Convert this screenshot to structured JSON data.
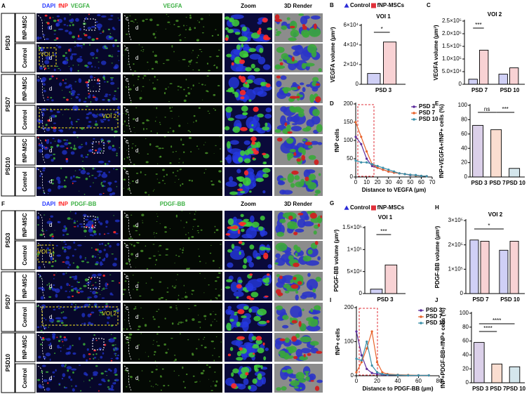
{
  "image_panels": [
    {
      "label": "A",
      "header_merge": [
        "DAPI",
        "fNP",
        "VEGFA"
      ],
      "header_colors": [
        "#2b3cff",
        "#ff2020",
        "#3cb043"
      ],
      "header_channel": "VEGFA",
      "header_zoom": "Zoom",
      "header_render": "3D Render",
      "groups": [
        "PSD3",
        "PSD7",
        "PSD10"
      ],
      "rows": [
        "fNP-MSC",
        "Control"
      ],
      "region_labels": [
        "d",
        "c",
        "VOI 1",
        "VOI 2"
      ]
    },
    {
      "label": "F",
      "header_merge": [
        "DAPI",
        "fNP",
        "PDGF-BB"
      ],
      "header_colors": [
        "#2b3cff",
        "#ff2020",
        "#3cb043"
      ],
      "header_channel": "PDGF-BB",
      "header_zoom": "Zoom",
      "header_render": "3D Render",
      "groups": [
        "PSD3",
        "PSD7",
        "PSD10"
      ],
      "rows": [
        "fNP-MSC",
        "Control"
      ],
      "region_labels": [
        "d",
        "c",
        "VOI 1",
        "VOI 2"
      ]
    }
  ],
  "chart_data": [
    {
      "label": "B",
      "type": "bar",
      "title": "VOI 1",
      "ylabel": "VEGFA volume (µm³)",
      "categories": [
        "PSD 3"
      ],
      "series": [
        {
          "name": "Control",
          "color": "#2b2bd6",
          "marker": "triangle",
          "values": [
            11000
          ]
        },
        {
          "name": "fNP-MSCs",
          "color": "#e0303a",
          "marker": "square",
          "values": [
            43000
          ]
        }
      ],
      "ylim": [
        0,
        60000
      ],
      "yticks": [
        0,
        {
          "value": 20000,
          "label": "2×10⁴"
        },
        {
          "value": 40000,
          "label": "4×10⁴"
        },
        {
          "value": 60000,
          "label": "6×10⁴"
        }
      ],
      "annotations": [
        "*"
      ]
    },
    {
      "label": "C",
      "type": "bar",
      "title": "VOI 2",
      "ylabel": "VEGFA volume (µm³)",
      "categories": [
        "PSD 7",
        "PSD 10"
      ],
      "series": [
        {
          "color": "#2b2bd6",
          "values": [
            20000,
            40000
          ]
        },
        {
          "color": "#e0303a",
          "values": [
            135000,
            65000
          ]
        }
      ],
      "ylim": [
        0,
        250000
      ],
      "yticks": [
        0,
        {
          "value": 50000,
          "label": "5.0×10⁴"
        },
        {
          "value": 100000,
          "label": "1.0×10⁵"
        },
        {
          "value": 150000,
          "label": "1.5×10⁵"
        },
        {
          "value": 200000,
          "label": "2.0×10⁵"
        },
        {
          "value": 250000,
          "label": "2.5×10⁵"
        }
      ],
      "annotations": [
        "***"
      ]
    },
    {
      "label": "D",
      "type": "line",
      "ylabel": "fNP cells",
      "xlabel": "Distance to VEGFA (µm)",
      "x": [
        0,
        5,
        10,
        15,
        20,
        25,
        30,
        35,
        40,
        45,
        50,
        55,
        60,
        65
      ],
      "series": [
        {
          "name": "PSD 3",
          "color": "#5b2a9b",
          "values": [
            110,
            90,
            50,
            30,
            25,
            20,
            15,
            12,
            10,
            8,
            5,
            5,
            3,
            2
          ]
        },
        {
          "name": "PSD 7",
          "color": "#e8632b",
          "values": [
            150,
            110,
            70,
            35,
            25,
            20,
            15,
            12,
            10,
            8,
            6,
            4,
            3,
            2
          ]
        },
        {
          "name": "PSD 10",
          "color": "#3a8fa8",
          "values": [
            45,
            40,
            40,
            35,
            30,
            25,
            20,
            15,
            10,
            8,
            6,
            5,
            3,
            2
          ]
        }
      ],
      "xlim": [
        0,
        70
      ],
      "xticks": [
        0,
        10,
        20,
        30,
        40,
        50,
        60,
        70
      ],
      "ylim": [
        0,
        200
      ],
      "yticks": [
        0,
        50,
        100,
        150,
        200
      ]
    },
    {
      "label": "E",
      "type": "bar",
      "ylabel": "fNP+VEGFA+/fNP+ cells (%)",
      "categories": [
        "PSD 3",
        "PSD 7",
        "PSD 10"
      ],
      "values": [
        72,
        66,
        12
      ],
      "colors": [
        "#5b2a9b",
        "#e8632b",
        "#3a8fa8"
      ],
      "ylim": [
        0,
        100
      ],
      "yticks": [
        0,
        20,
        40,
        60,
        80,
        100
      ],
      "annotations": [
        "ns",
        "***"
      ]
    },
    {
      "label": "G",
      "type": "bar",
      "title": "VOI 1",
      "ylabel": "PDGF-BB volume (µm³)",
      "categories": [
        "PSD 3"
      ],
      "series": [
        {
          "name": "Control",
          "color": "#2b2bd6",
          "marker": "triangle",
          "values": [
            10000
          ]
        },
        {
          "name": "fNP-MSCs",
          "color": "#e0303a",
          "marker": "square",
          "values": [
            65000
          ]
        }
      ],
      "ylim": [
        0,
        150000
      ],
      "yticks": [
        0,
        {
          "value": 50000,
          "label": "5×10⁴"
        },
        {
          "value": 100000,
          "label": "1×10⁵"
        },
        {
          "value": 150000,
          "label": "1.5×10⁵"
        }
      ],
      "annotations": [
        "***"
      ]
    },
    {
      "label": "H",
      "type": "bar",
      "title": "VOI 2",
      "ylabel": "PDGF-BB volume (µm³)",
      "categories": [
        "PSD 7",
        "PSD 10"
      ],
      "series": [
        {
          "color": "#2b2bd6",
          "values": [
            220000,
            178000
          ]
        },
        {
          "color": "#e0303a",
          "values": [
            215000,
            215000
          ]
        }
      ],
      "ylim": [
        0,
        300000
      ],
      "yticks": [
        0,
        {
          "value": 100000,
          "label": "1×10⁵"
        },
        {
          "value": 200000,
          "label": "2×10⁵"
        },
        {
          "value": 300000,
          "label": "3×10⁵"
        }
      ],
      "annotations": [
        "*"
      ]
    },
    {
      "label": "I",
      "type": "line",
      "ylabel": "fNP+ cells",
      "xlabel": "Distance to PDGF-BB (µm)",
      "x": [
        0,
        5,
        10,
        15,
        20,
        25,
        30,
        40,
        50,
        60,
        70
      ],
      "series": [
        {
          "name": "PSD 3",
          "color": "#5b2a9b",
          "values": [
            130,
            60,
            20,
            8,
            5,
            3,
            2,
            2,
            1,
            1,
            1
          ]
        },
        {
          "name": "PSD 7",
          "color": "#e8632b",
          "values": [
            10,
            40,
            80,
            130,
            40,
            10,
            5,
            3,
            2,
            1,
            1
          ]
        },
        {
          "name": "PSD 10",
          "color": "#3a8fa8",
          "values": [
            50,
            45,
            100,
            30,
            10,
            5,
            3,
            2,
            1,
            1,
            1
          ]
        }
      ],
      "xlim": [
        0,
        80
      ],
      "xticks": [
        0,
        20,
        40,
        60,
        80
      ],
      "ylim": [
        0,
        200
      ],
      "yticks": [
        0,
        100,
        200
      ]
    },
    {
      "label": "J",
      "type": "bar",
      "ylabel": "fNP+PDGF-BB+/fNP+ cells (%)",
      "categories": [
        "PSD 3",
        "PSD 7",
        "PSD 10"
      ],
      "values": [
        58,
        27,
        23
      ],
      "colors": [
        "#5b2a9b",
        "#e8632b",
        "#3a8fa8"
      ],
      "ylim": [
        0,
        100
      ],
      "yticks": [
        0,
        20,
        40,
        60,
        80,
        100
      ],
      "annotations": [
        "****",
        "****"
      ]
    }
  ]
}
